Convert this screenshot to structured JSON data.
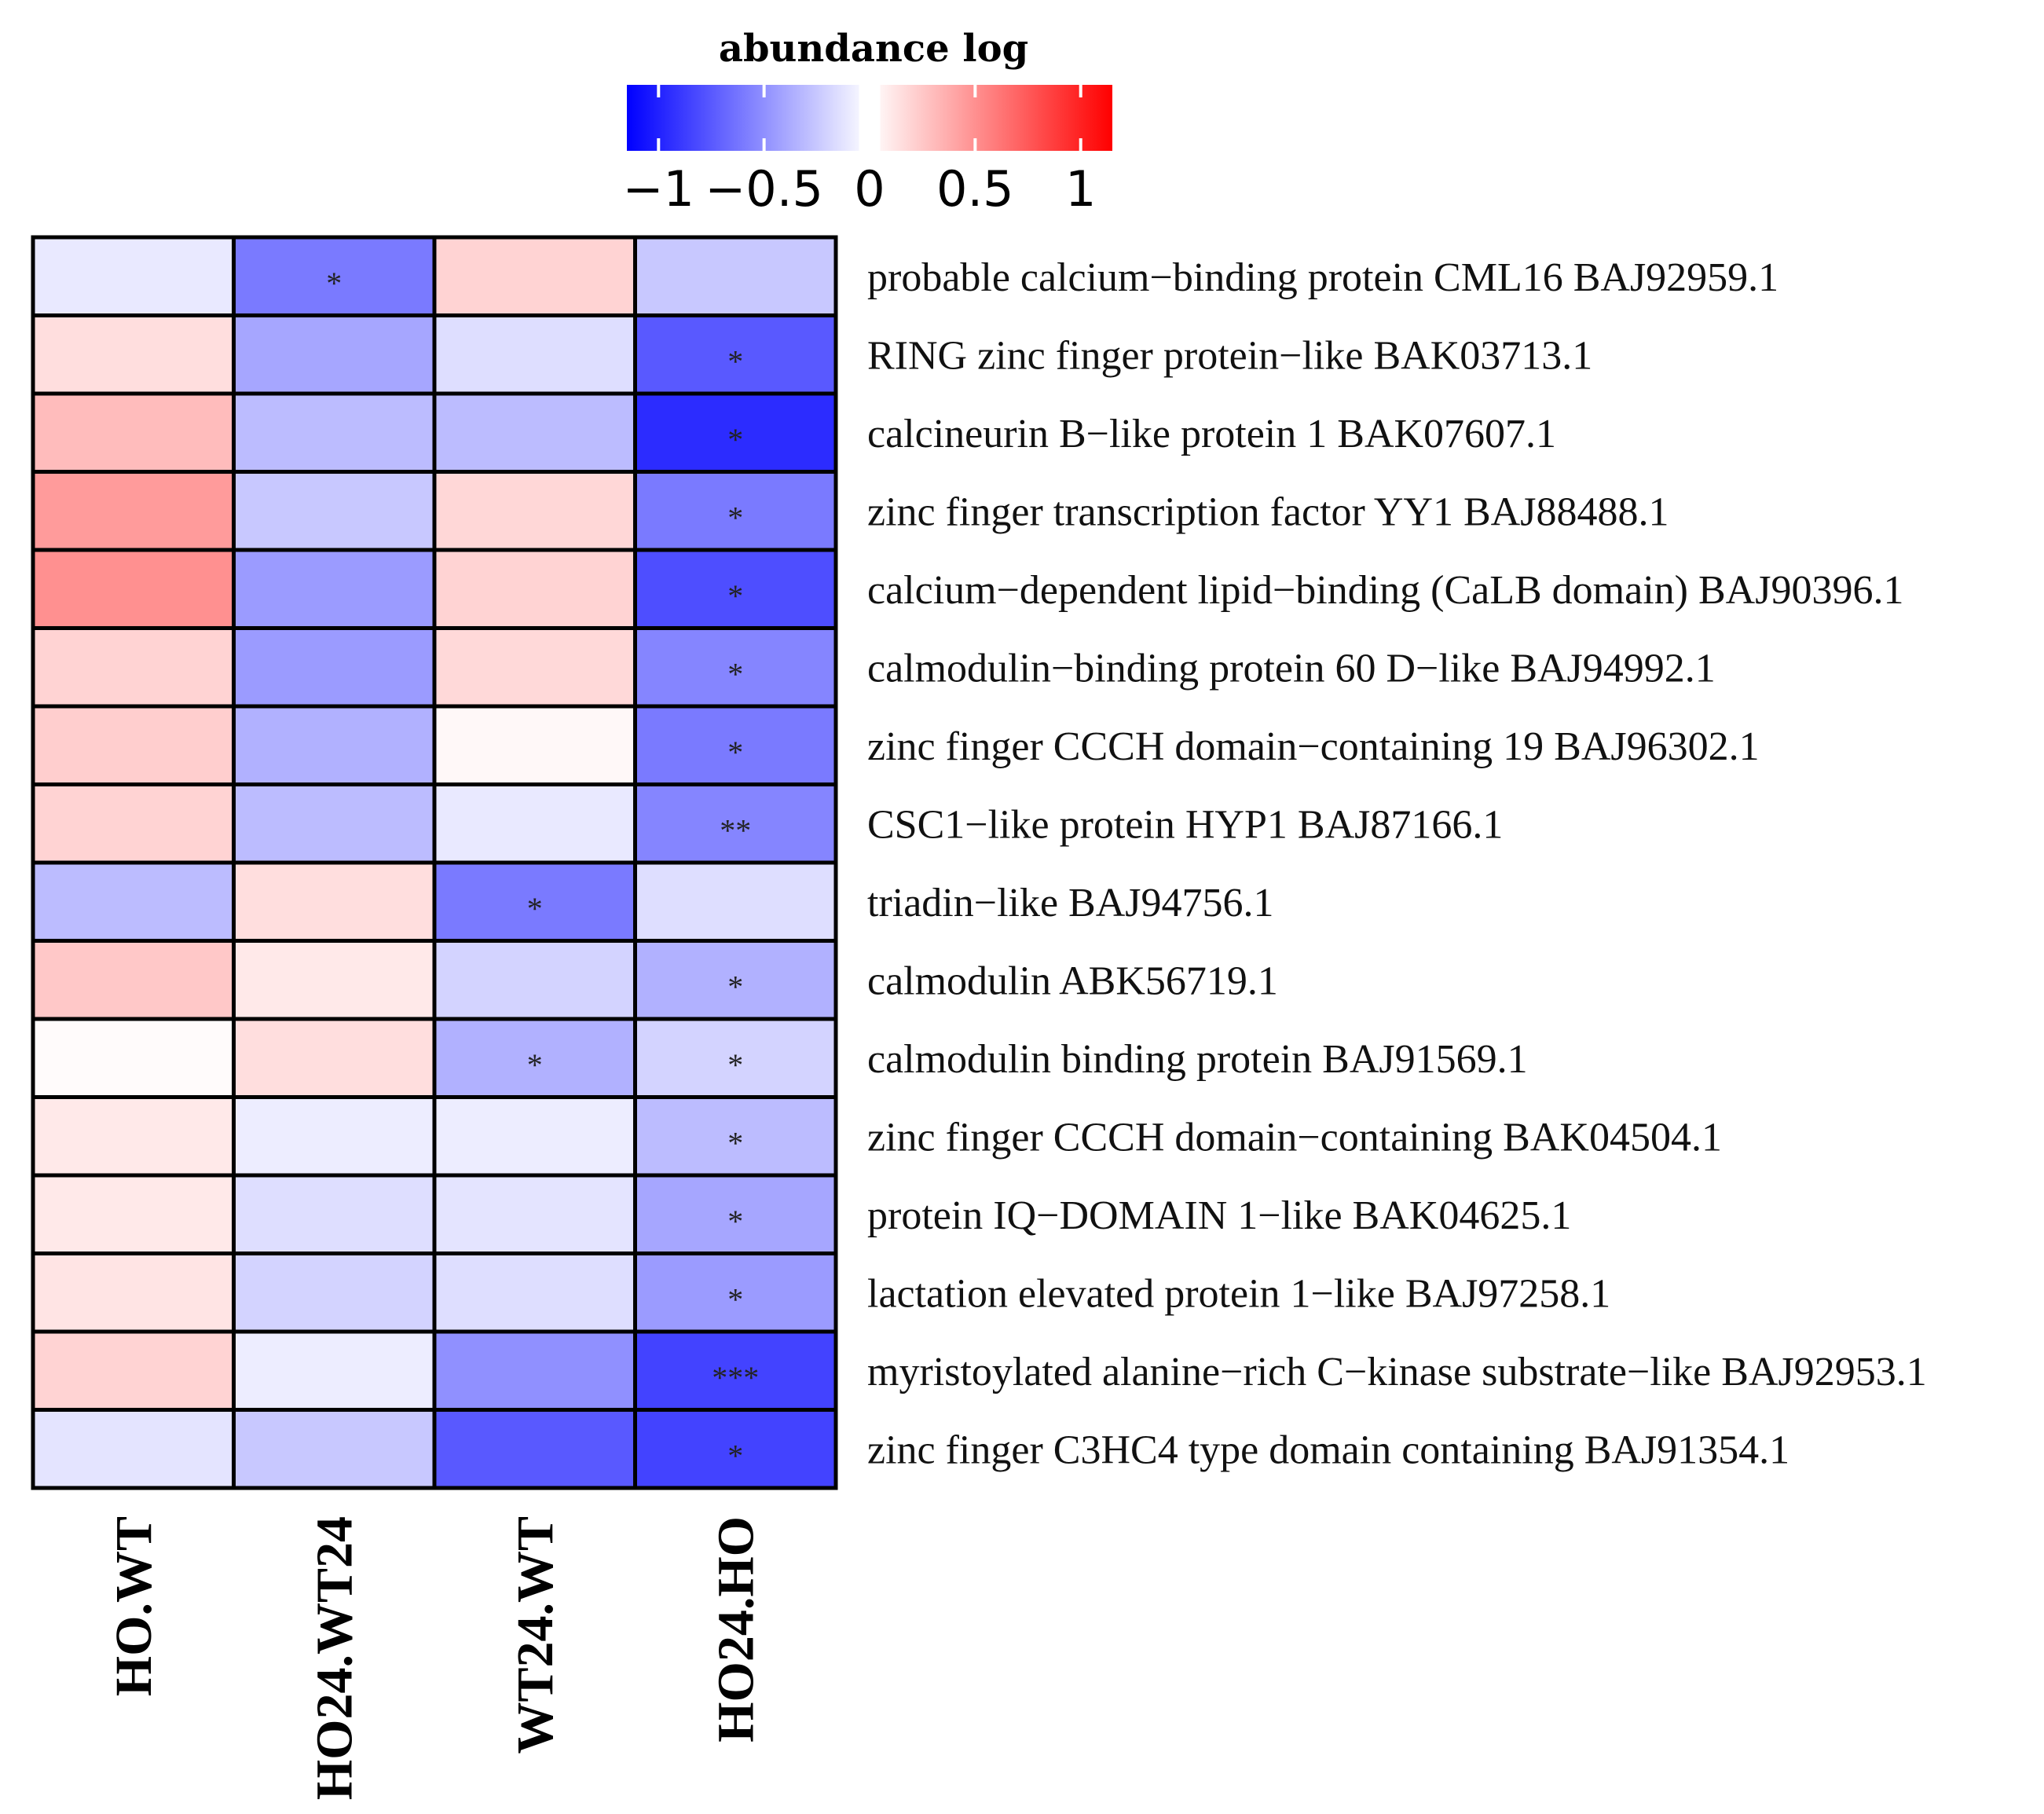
{
  "chart_data": {
    "type": "heatmap",
    "legend": {
      "title": "abundance log",
      "ticks": [
        "−1",
        "−0.5",
        "0",
        "0.5",
        "1"
      ],
      "tick_values": [
        -1,
        -0.5,
        0,
        0.5,
        1
      ],
      "range": [
        -1.15,
        1.15
      ],
      "low_color": "#0000ff",
      "mid_color": "#ffffff",
      "high_color": "#ff0000"
    },
    "columns": [
      "HO.WT",
      "HO24.WT24",
      "WT24.WT",
      "HO24.HO"
    ],
    "rows": [
      "probable calcium−binding protein CML16 BAJ92959.1",
      "RING zinc finger protein−like BAK03713.1",
      "calcineurin B−like protein 1 BAK07607.1",
      "zinc finger transcription factor YY1 BAJ88488.1",
      "calcium−dependent lipid−binding (CaLB domain) BAJ90396.1",
      "calmodulin−binding protein 60 D−like BAJ94992.1",
      "zinc finger CCCH domain−containing 19 BAJ96302.1",
      "CSC1−like protein HYP1 BAJ87166.1",
      "triadin−like BAJ94756.1",
      "calmodulin ABK56719.1",
      "calmodulin binding protein BAJ91569.1",
      "zinc finger CCCH domain−containing BAK04504.1",
      "protein IQ−DOMAIN 1−like BAK04625.1",
      "lactation elevated protein 1−like BAJ97258.1",
      "myristoylated alanine−rich C−kinase substrate−like BAJ92953.1",
      "zinc finger C3HC4 type domain containing BAJ91354.1"
    ],
    "values": [
      [
        -0.1,
        -0.6,
        0.2,
        -0.25
      ],
      [
        0.15,
        -0.4,
        -0.15,
        -0.75
      ],
      [
        0.3,
        -0.3,
        -0.3,
        -0.95
      ],
      [
        0.45,
        -0.25,
        0.18,
        -0.6
      ],
      [
        0.5,
        -0.45,
        0.2,
        -0.8
      ],
      [
        0.2,
        -0.45,
        0.17,
        -0.55
      ],
      [
        0.22,
        -0.35,
        0.03,
        -0.6
      ],
      [
        0.2,
        -0.3,
        -0.1,
        -0.55
      ],
      [
        -0.3,
        0.15,
        -0.6,
        -0.15
      ],
      [
        0.25,
        0.1,
        -0.2,
        -0.35
      ],
      [
        0.02,
        0.15,
        -0.35,
        -0.2
      ],
      [
        0.1,
        -0.08,
        -0.08,
        -0.3
      ],
      [
        0.1,
        -0.15,
        -0.12,
        -0.4
      ],
      [
        0.12,
        -0.2,
        -0.15,
        -0.45
      ],
      [
        0.2,
        -0.08,
        -0.5,
        -0.85
      ],
      [
        -0.12,
        -0.25,
        -0.75,
        -0.85
      ]
    ],
    "significance": [
      [
        "",
        "*",
        "",
        ""
      ],
      [
        "",
        "",
        "",
        "*"
      ],
      [
        "",
        "",
        "",
        "*"
      ],
      [
        "",
        "",
        "",
        "*"
      ],
      [
        "",
        "",
        "",
        "*"
      ],
      [
        "",
        "",
        "",
        "*"
      ],
      [
        "",
        "",
        "",
        "*"
      ],
      [
        "",
        "",
        "",
        "**"
      ],
      [
        "",
        "",
        "*",
        ""
      ],
      [
        "",
        "",
        "",
        "*"
      ],
      [
        "",
        "",
        "*",
        "*"
      ],
      [
        "",
        "",
        "",
        "*"
      ],
      [
        "",
        "",
        "",
        "*"
      ],
      [
        "",
        "",
        "",
        "*"
      ],
      [
        "",
        "",
        "",
        "***"
      ],
      [
        "",
        "",
        "",
        "*"
      ]
    ]
  }
}
